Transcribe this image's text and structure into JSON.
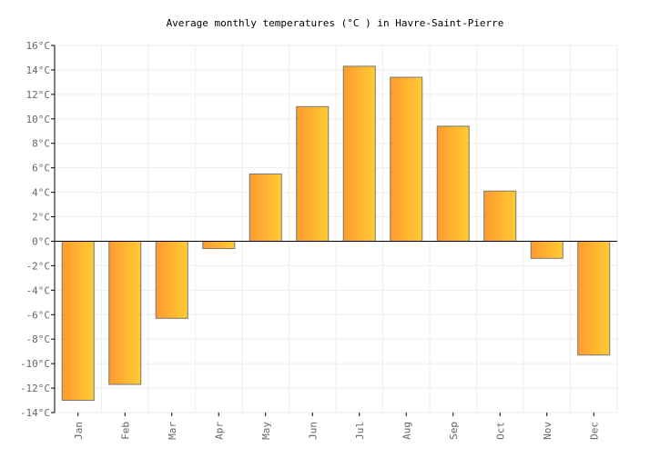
{
  "chart_data": {
    "type": "bar",
    "title": "Average monthly temperatures (°C ) in Havre-Saint-Pierre",
    "xlabel": "",
    "ylabel": "",
    "categories": [
      "Jan",
      "Feb",
      "Mar",
      "Apr",
      "May",
      "Jun",
      "Jul",
      "Aug",
      "Sep",
      "Oct",
      "Nov",
      "Dec"
    ],
    "values": [
      -13.0,
      -11.7,
      -6.3,
      -0.6,
      5.5,
      11.0,
      14.3,
      13.4,
      9.4,
      4.1,
      -1.4,
      -9.3
    ],
    "ylim": [
      -14,
      16
    ],
    "ytick_step": 2,
    "ytick_suffix": "°C",
    "grid": true,
    "legend": "none",
    "colors": {
      "bar_start": "#ff9a2f",
      "bar_end": "#ffcc33",
      "bar_stroke": "#777777",
      "grid": "#eeeeee",
      "axis": "#000000",
      "tick_text": "#666666"
    }
  }
}
